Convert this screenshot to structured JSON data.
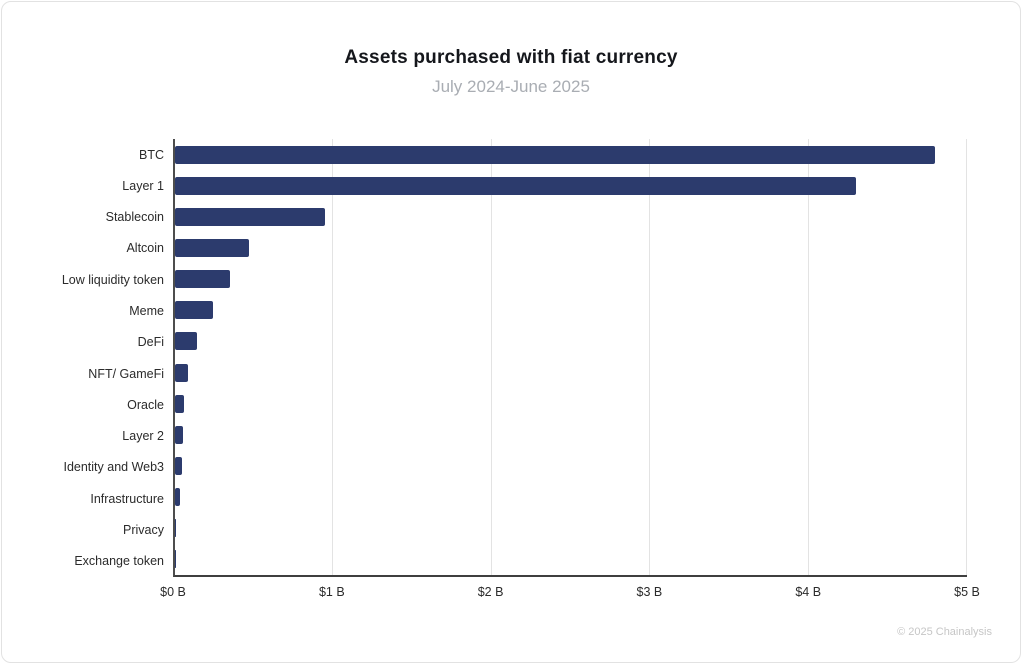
{
  "footer": {
    "copyright": "© 2025 Chainalysis"
  },
  "colors": {
    "bar": "#2c3b6d",
    "gridline": "#e3e3e3",
    "axis_line": "#4d4d4d",
    "title_text": "#15171c",
    "subtitle_text": "#a9adb3",
    "tick_text": "#2b2b2b",
    "copyright_text": "#c6c6c6",
    "card_border": "#e2e2e2",
    "background": "#ffffff"
  },
  "chart_data": {
    "type": "bar",
    "orientation": "horizontal",
    "title": "Assets purchased with fiat currency",
    "subtitle": "July 2024-June 2025",
    "unit": "USD billions",
    "categories": [
      "BTC",
      "Layer 1",
      "Stablecoin",
      "Altcoin",
      "Low liquidity token",
      "Meme",
      "DeFi",
      "NFT/ GameFi",
      "Oracle",
      "Layer 2",
      "Identity and Web3",
      "Infrastructure",
      "Privacy",
      "Exchange token"
    ],
    "values": [
      4.8,
      4.3,
      0.95,
      0.47,
      0.35,
      0.24,
      0.14,
      0.08,
      0.057,
      0.05,
      0.046,
      0.032,
      0.005,
      0.003
    ],
    "x_ticks": [
      "$0 B",
      "$1 B",
      "$2 B",
      "$3 B",
      "$4 B",
      "$5 B"
    ],
    "xlim": [
      0,
      5
    ],
    "xlabel": "",
    "ylabel": "",
    "grid": "vertical",
    "legend": "none"
  }
}
